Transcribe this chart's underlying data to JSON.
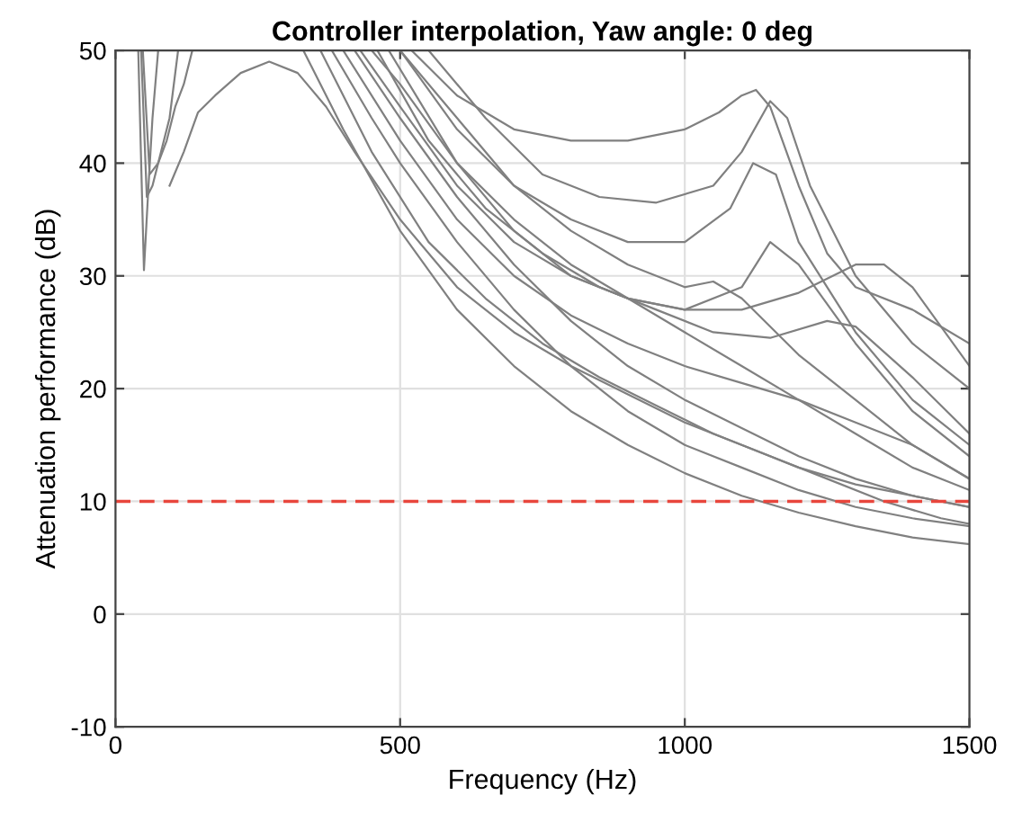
{
  "chart_data": {
    "type": "line",
    "title": "Controller interpolation, Yaw angle: 0 deg",
    "xlabel": "Frequency (Hz)",
    "ylabel": "Attenuation performance (dB)",
    "xlim": [
      0,
      1500
    ],
    "ylim": [
      -10,
      50
    ],
    "xticks": [
      0,
      500,
      1000,
      1500
    ],
    "yticks": [
      -10,
      0,
      10,
      20,
      30,
      40,
      50
    ],
    "grid": true,
    "line_style": "solid",
    "series": [
      {
        "color": "#808080",
        "x": [
          40,
          50,
          58,
          65,
          75
        ],
        "values": [
          50,
          30.5,
          38,
          44,
          50
        ]
      },
      {
        "color": "#808080",
        "x": [
          45,
          55,
          65,
          80,
          95,
          110
        ],
        "values": [
          50,
          37,
          38,
          41,
          44,
          50
        ]
      },
      {
        "color": "#808080",
        "x": [
          48,
          60,
          75,
          90,
          105,
          120,
          135
        ],
        "values": [
          50,
          39,
          40,
          42,
          45,
          47,
          50
        ]
      },
      {
        "color": "#808080",
        "x": [
          95,
          120,
          145,
          175,
          220,
          270,
          320,
          370,
          420,
          500,
          600,
          700,
          800,
          900,
          1000,
          1100,
          1200,
          1300,
          1400,
          1500
        ],
        "values": [
          38,
          41,
          44.5,
          46,
          48,
          49,
          48,
          45,
          41,
          35,
          29,
          25,
          22,
          19.5,
          17,
          15,
          13,
          11.5,
          10.5,
          9.5
        ]
      },
      {
        "color": "#808080",
        "x": [
          330,
          400,
          500,
          600,
          700,
          800,
          900,
          1000,
          1100,
          1200,
          1300,
          1400,
          1500
        ],
        "values": [
          50,
          43,
          34,
          27,
          22,
          18,
          15,
          12.5,
          10.5,
          9,
          7.8,
          6.8,
          6.2
        ]
      },
      {
        "color": "#808080",
        "x": [
          380,
          450,
          500,
          600,
          700,
          800,
          900,
          1000,
          1100,
          1200,
          1300,
          1400,
          1500
        ],
        "values": [
          50,
          44,
          40,
          33,
          27,
          22,
          18,
          15,
          13,
          11,
          9.5,
          8.5,
          7.8
        ]
      },
      {
        "color": "#808080",
        "x": [
          420,
          500,
          600,
          700,
          800,
          900,
          1000,
          1100,
          1200,
          1300,
          1400,
          1500
        ],
        "values": [
          50,
          44,
          37,
          31,
          26,
          22,
          19,
          16.5,
          14,
          12,
          10.5,
          9.5
        ]
      },
      {
        "color": "#808080",
        "x": [
          360,
          450,
          550,
          650,
          750,
          850,
          950,
          1050,
          1150,
          1250,
          1350,
          1450,
          1500
        ],
        "values": [
          50,
          41,
          33,
          28,
          24,
          21,
          18.5,
          16,
          14,
          12,
          10,
          8.5,
          8
        ]
      },
      {
        "color": "#808080",
        "x": [
          450,
          500,
          600,
          700,
          800,
          900,
          1000,
          1100,
          1200,
          1300,
          1400,
          1500
        ],
        "values": [
          50,
          47,
          40,
          35,
          31,
          28,
          25,
          22,
          19,
          16,
          13,
          11
        ]
      },
      {
        "color": "#808080",
        "x": [
          500,
          600,
          700,
          800,
          900,
          1000,
          1050,
          1100,
          1200,
          1300,
          1400,
          1500
        ],
        "values": [
          50,
          44,
          38,
          34,
          31,
          29,
          29.5,
          28,
          23,
          19,
          15,
          12
        ]
      },
      {
        "color": "#808080",
        "x": [
          520,
          600,
          700,
          800,
          900,
          1000,
          1060,
          1100,
          1125,
          1150,
          1200,
          1250,
          1300,
          1400,
          1500
        ],
        "values": [
          50,
          46,
          43,
          42,
          42,
          43,
          44.5,
          46,
          46.5,
          45,
          38,
          32,
          29,
          27,
          24
        ]
      },
      {
        "color": "#808080",
        "x": [
          550,
          650,
          750,
          850,
          950,
          1050,
          1100,
          1150,
          1180,
          1220,
          1300,
          1400,
          1500
        ],
        "values": [
          50,
          44,
          39,
          37,
          36.5,
          38,
          41,
          45.5,
          44,
          38,
          30,
          24,
          20
        ]
      },
      {
        "color": "#808080",
        "x": [
          480,
          600,
          700,
          800,
          900,
          1000,
          1100,
          1200,
          1300,
          1350,
          1400,
          1500
        ],
        "values": [
          50,
          40,
          34,
          30,
          28,
          27,
          27,
          28.5,
          31,
          31,
          29,
          22
        ]
      },
      {
        "color": "#808080",
        "x": [
          400,
          500,
          600,
          700,
          800,
          900,
          1000,
          1100,
          1200,
          1300,
          1400,
          1500
        ],
        "values": [
          50,
          42,
          35,
          30,
          26.5,
          24,
          22,
          20.5,
          19,
          17,
          15,
          12
        ]
      },
      {
        "color": "#808080",
        "x": [
          460,
          550,
          650,
          750,
          850,
          950,
          1050,
          1150,
          1250,
          1300,
          1400,
          1500
        ],
        "values": [
          50,
          42,
          36,
          32,
          29,
          27,
          25,
          24.5,
          26,
          25.5,
          21,
          16
        ]
      },
      {
        "color": "#808080",
        "x": [
          430,
          500,
          600,
          700,
          800,
          900,
          1000,
          1100,
          1150,
          1200,
          1300,
          1400,
          1500
        ],
        "values": [
          50,
          45,
          38,
          33,
          30,
          28,
          27,
          29,
          33,
          31,
          24,
          18,
          14
        ]
      },
      {
        "color": "#808080",
        "x": [
          500,
          600,
          700,
          800,
          900,
          1000,
          1080,
          1120,
          1160,
          1200,
          1300,
          1400,
          1500
        ],
        "values": [
          50,
          43,
          38,
          35,
          33,
          33,
          36,
          40,
          39,
          33,
          25,
          19,
          15
        ]
      }
    ],
    "ref_lines": [
      {
        "axis": "y",
        "value": 10,
        "color": "#e8463c",
        "line_style": "dashed"
      }
    ]
  }
}
